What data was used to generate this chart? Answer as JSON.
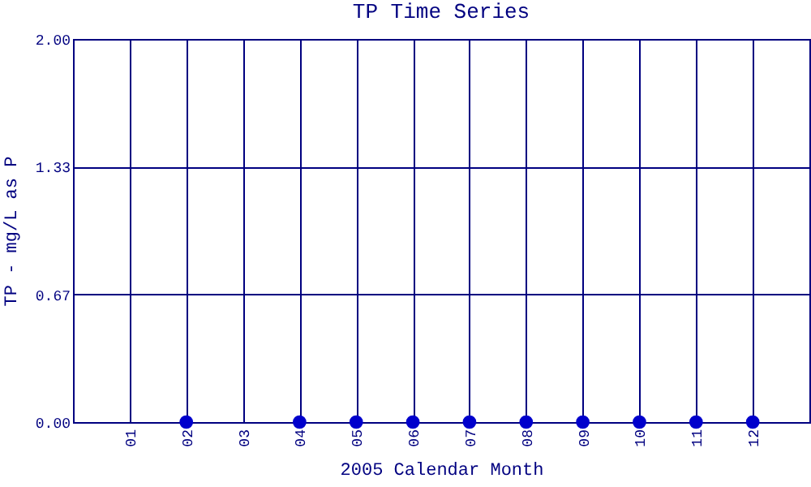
{
  "chart_data": {
    "type": "scatter",
    "title": "TP Time Series",
    "xlabel": "2005 Calendar Month",
    "ylabel": "TP - mg/L as P",
    "categories": [
      "01",
      "02",
      "03",
      "04",
      "05",
      "06",
      "07",
      "08",
      "09",
      "10",
      "11",
      "12"
    ],
    "series": [
      {
        "color": "#0000cc",
        "values": [
          null,
          0,
          null,
          0,
          0,
          0,
          0,
          0,
          0,
          0,
          0,
          0
        ]
      }
    ],
    "ylim": [
      0,
      2
    ],
    "yticks": [
      {
        "value": 0,
        "label": "0.00"
      },
      {
        "value": 0.667,
        "label": "0.67"
      },
      {
        "value": 1.333,
        "label": "1.33"
      },
      {
        "value": 2,
        "label": "2.00"
      }
    ],
    "grid": true,
    "marker": "circle"
  }
}
